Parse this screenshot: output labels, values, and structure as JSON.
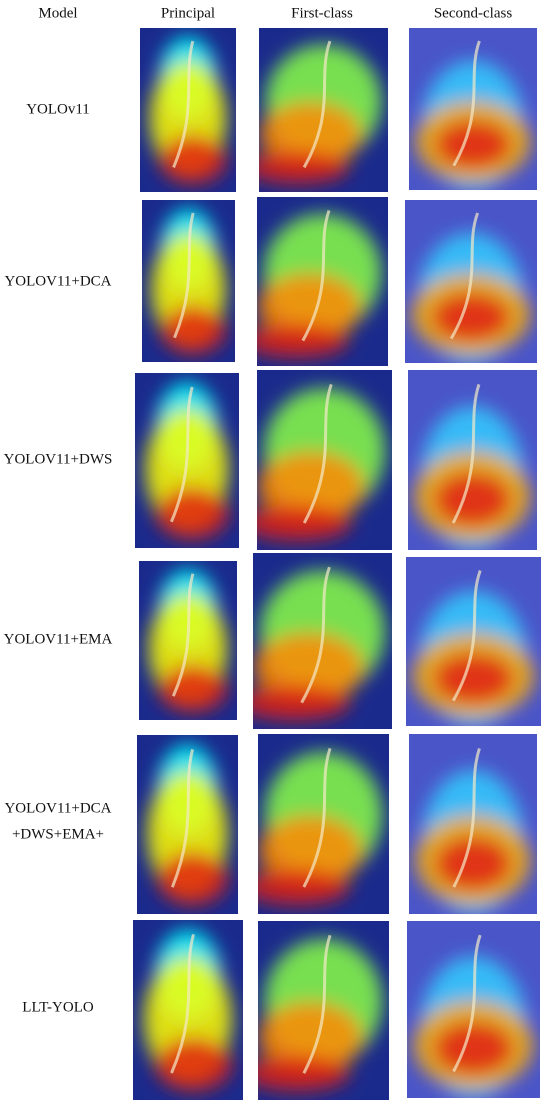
{
  "header": {
    "columns": [
      "Model",
      "Principal",
      "First-class",
      "Second-class"
    ]
  },
  "rows": [
    {
      "label_lines": [
        "YOLOv11"
      ]
    },
    {
      "label_lines": [
        "YOLOV11+DCA"
      ]
    },
    {
      "label_lines": [
        "YOLOV11+DWS"
      ]
    },
    {
      "label_lines": [
        "YOLOV11+EMA"
      ]
    },
    {
      "label_lines": [
        "YOLOV11+DCA",
        "+DWS+EMA+"
      ]
    },
    {
      "label_lines": [
        "LLT-YOLO"
      ]
    }
  ]
}
